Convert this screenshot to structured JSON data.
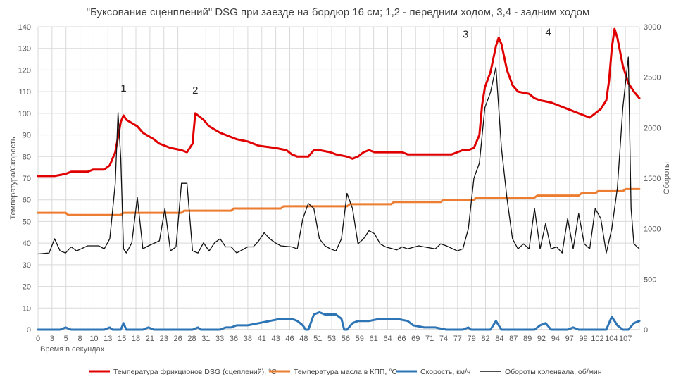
{
  "chart_data": {
    "type": "line",
    "title": "\"Буксование сценплений\" DSG при заезде на бордюр 16 см;  1,2 - передним ходом, 3,4 - задним ходом",
    "xlabel": "Время в секундах",
    "ylabel_left": "Температура/Скорость",
    "ylabel_right": "Обороты",
    "xlim": [
      0,
      109
    ],
    "ylim_left": [
      0,
      140
    ],
    "ylim_right": [
      0,
      3000
    ],
    "x_ticks": [
      "0",
      "3",
      "5",
      "8",
      "10",
      "13",
      "15",
      "18",
      "21",
      "23",
      "26",
      "28",
      "31",
      "33",
      "36",
      "38",
      "41",
      "43",
      "46",
      "48",
      "51",
      "53",
      "56",
      "59",
      "61",
      "64",
      "66",
      "69",
      "71",
      "74",
      "77",
      "79",
      "82",
      "84",
      "87",
      "89",
      "92",
      "94",
      "97",
      "99",
      "102",
      "104",
      "107"
    ],
    "x_tick_labels": [
      "0",
      "3",
      "5",
      "8",
      "10",
      "13",
      "15",
      "18",
      "21",
      "23",
      "26",
      "28",
      "31",
      "33",
      "36",
      "38",
      "41",
      "43",
      "46",
      "48",
      "51",
      "53",
      "56",
      "59",
      "61",
      "64",
      "66",
      "69",
      "71",
      "74",
      "77",
      "79",
      "82",
      "84",
      "87",
      "89",
      "92",
      "94",
      "97",
      "99",
      "102",
      "104",
      "107"
    ],
    "y_ticks_left": [
      "0",
      "10",
      "20",
      "30",
      "40",
      "50",
      "60",
      "70",
      "80",
      "90",
      "100",
      "110",
      "120",
      "130",
      "140"
    ],
    "y_ticks_right": [
      "0",
      "500",
      "1000",
      "1500",
      "2000",
      "2500",
      "3000"
    ],
    "annotations": [
      {
        "text": "1",
        "x": 15.5,
        "y": 110
      },
      {
        "text": "2",
        "x": 28.5,
        "y": 109
      },
      {
        "text": "3",
        "x": 77.5,
        "y": 135
      },
      {
        "text": "4",
        "x": 92.5,
        "y": 136
      }
    ],
    "grid": true,
    "legend_position": "bottom",
    "series": [
      {
        "name": "Температура фрикционов DSG (сцеплений), °С",
        "axis": "left",
        "color": "#e00000",
        "width": 3,
        "points": [
          [
            0,
            71
          ],
          [
            3,
            71
          ],
          [
            5,
            72
          ],
          [
            6,
            73
          ],
          [
            9,
            73
          ],
          [
            10,
            74
          ],
          [
            12,
            74
          ],
          [
            13,
            76
          ],
          [
            14,
            82
          ],
          [
            15,
            96
          ],
          [
            15.5,
            99
          ],
          [
            16,
            97
          ],
          [
            18,
            94
          ],
          [
            19,
            91
          ],
          [
            21,
            88
          ],
          [
            22,
            86
          ],
          [
            24,
            84
          ],
          [
            26,
            83
          ],
          [
            27,
            82
          ],
          [
            28,
            86
          ],
          [
            28.5,
            100
          ],
          [
            29,
            99
          ],
          [
            30,
            97
          ],
          [
            31,
            94
          ],
          [
            33,
            91
          ],
          [
            35,
            89
          ],
          [
            36,
            88
          ],
          [
            38,
            87
          ],
          [
            40,
            85
          ],
          [
            43,
            84
          ],
          [
            45,
            83
          ],
          [
            46,
            81
          ],
          [
            47,
            80
          ],
          [
            49,
            80
          ],
          [
            50,
            83
          ],
          [
            51,
            83
          ],
          [
            53,
            82
          ],
          [
            54,
            81
          ],
          [
            56,
            80
          ],
          [
            57,
            79
          ],
          [
            58,
            80
          ],
          [
            59,
            82
          ],
          [
            60,
            83
          ],
          [
            61,
            82
          ],
          [
            66,
            82
          ],
          [
            67,
            81
          ],
          [
            75,
            81
          ],
          [
            76,
            82
          ],
          [
            77,
            83
          ],
          [
            78,
            83
          ],
          [
            79,
            84
          ],
          [
            80,
            90
          ],
          [
            80.5,
            104
          ],
          [
            81,
            112
          ],
          [
            82,
            119
          ],
          [
            83,
            131
          ],
          [
            83.5,
            135
          ],
          [
            84,
            132
          ],
          [
            85,
            120
          ],
          [
            86,
            113
          ],
          [
            87,
            110
          ],
          [
            89,
            109
          ],
          [
            90,
            107
          ],
          [
            91,
            106
          ],
          [
            93,
            105
          ],
          [
            94,
            104
          ],
          [
            96,
            102
          ],
          [
            98,
            100
          ],
          [
            99,
            99
          ],
          [
            100,
            98
          ],
          [
            101,
            100
          ],
          [
            102,
            102
          ],
          [
            103,
            106
          ],
          [
            103.5,
            115
          ],
          [
            104,
            130
          ],
          [
            104.5,
            139
          ],
          [
            105,
            135
          ],
          [
            106,
            122
          ],
          [
            107,
            114
          ],
          [
            108,
            110
          ],
          [
            109,
            107
          ]
        ]
      },
      {
        "name": "Температура масла в КПП, °С",
        "axis": "left",
        "color": "#ed7d31",
        "width": 3,
        "points": [
          [
            0,
            54
          ],
          [
            5,
            54
          ],
          [
            5.5,
            53
          ],
          [
            15,
            53
          ],
          [
            15.5,
            54
          ],
          [
            26,
            54
          ],
          [
            26.5,
            55
          ],
          [
            35,
            55
          ],
          [
            35.5,
            56
          ],
          [
            44,
            56
          ],
          [
            44.5,
            57
          ],
          [
            56,
            57
          ],
          [
            56.5,
            58
          ],
          [
            64,
            58
          ],
          [
            64.5,
            59
          ],
          [
            73,
            59
          ],
          [
            73.5,
            60
          ],
          [
            79,
            60
          ],
          [
            79.5,
            61
          ],
          [
            90,
            61
          ],
          [
            90.5,
            62
          ],
          [
            98,
            62
          ],
          [
            98.5,
            63
          ],
          [
            101,
            63
          ],
          [
            101.5,
            64
          ],
          [
            106,
            64
          ],
          [
            106.5,
            65
          ],
          [
            109,
            65
          ]
        ]
      },
      {
        "name": "Скорость, км/ч",
        "axis": "left",
        "color": "#2e75b6",
        "width": 3,
        "points": [
          [
            0,
            0
          ],
          [
            4,
            0
          ],
          [
            5,
            1
          ],
          [
            6,
            0
          ],
          [
            12,
            0
          ],
          [
            13,
            1
          ],
          [
            13.5,
            0
          ],
          [
            15,
            0
          ],
          [
            15.5,
            3
          ],
          [
            16,
            0
          ],
          [
            19,
            0
          ],
          [
            20,
            1
          ],
          [
            21,
            0
          ],
          [
            28,
            0
          ],
          [
            29,
            1
          ],
          [
            29.5,
            0
          ],
          [
            33,
            0
          ],
          [
            34,
            1
          ],
          [
            35,
            1
          ],
          [
            36,
            2
          ],
          [
            38,
            2
          ],
          [
            40,
            3
          ],
          [
            42,
            4
          ],
          [
            44,
            5
          ],
          [
            46,
            5
          ],
          [
            47,
            4
          ],
          [
            48,
            2
          ],
          [
            48.5,
            0
          ],
          [
            49,
            0
          ],
          [
            50,
            7
          ],
          [
            51,
            8
          ],
          [
            52,
            7
          ],
          [
            54,
            7
          ],
          [
            55,
            5
          ],
          [
            55.5,
            0
          ],
          [
            56,
            0
          ],
          [
            57,
            3
          ],
          [
            58,
            4
          ],
          [
            60,
            4
          ],
          [
            62,
            5
          ],
          [
            65,
            5
          ],
          [
            67,
            4
          ],
          [
            68,
            2
          ],
          [
            70,
            1
          ],
          [
            72,
            1
          ],
          [
            74,
            0
          ],
          [
            77,
            0
          ],
          [
            78,
            1
          ],
          [
            78.5,
            0
          ],
          [
            82,
            0
          ],
          [
            83,
            4
          ],
          [
            84,
            0
          ],
          [
            90,
            0
          ],
          [
            91,
            2
          ],
          [
            92,
            3
          ],
          [
            93,
            0
          ],
          [
            96,
            0
          ],
          [
            97,
            1
          ],
          [
            98,
            0
          ],
          [
            103,
            0
          ],
          [
            104,
            6
          ],
          [
            105,
            2
          ],
          [
            106,
            0
          ],
          [
            107,
            0
          ],
          [
            108,
            3
          ],
          [
            109,
            4
          ]
        ]
      },
      {
        "name": "Обороты коленвала, об/мин",
        "axis": "right",
        "color": "#111111",
        "width": 1.3,
        "points": [
          [
            0,
            750
          ],
          [
            2,
            760
          ],
          [
            3,
            900
          ],
          [
            4,
            780
          ],
          [
            5,
            760
          ],
          [
            6,
            820
          ],
          [
            7,
            780
          ],
          [
            9,
            830
          ],
          [
            11,
            830
          ],
          [
            12,
            800
          ],
          [
            13,
            900
          ],
          [
            14,
            1450
          ],
          [
            14.5,
            2150
          ],
          [
            15,
            1700
          ],
          [
            15.5,
            800
          ],
          [
            16,
            760
          ],
          [
            17,
            860
          ],
          [
            18,
            1310
          ],
          [
            19,
            800
          ],
          [
            20,
            830
          ],
          [
            22,
            880
          ],
          [
            23,
            1200
          ],
          [
            24,
            780
          ],
          [
            25,
            820
          ],
          [
            26,
            1450
          ],
          [
            27,
            1450
          ],
          [
            28,
            780
          ],
          [
            29,
            760
          ],
          [
            30,
            860
          ],
          [
            31,
            780
          ],
          [
            32,
            860
          ],
          [
            33,
            900
          ],
          [
            34,
            820
          ],
          [
            35,
            820
          ],
          [
            36,
            760
          ],
          [
            38,
            820
          ],
          [
            39,
            820
          ],
          [
            40,
            880
          ],
          [
            41,
            960
          ],
          [
            42,
            900
          ],
          [
            43,
            860
          ],
          [
            44,
            830
          ],
          [
            46,
            820
          ],
          [
            47,
            800
          ],
          [
            48,
            1100
          ],
          [
            49,
            1250
          ],
          [
            50,
            1200
          ],
          [
            51,
            900
          ],
          [
            52,
            830
          ],
          [
            53,
            800
          ],
          [
            54,
            780
          ],
          [
            55,
            900
          ],
          [
            56,
            1350
          ],
          [
            57,
            1200
          ],
          [
            58,
            850
          ],
          [
            59,
            900
          ],
          [
            60,
            980
          ],
          [
            61,
            950
          ],
          [
            62,
            850
          ],
          [
            63,
            820
          ],
          [
            65,
            790
          ],
          [
            66,
            820
          ],
          [
            67,
            800
          ],
          [
            69,
            830
          ],
          [
            70,
            820
          ],
          [
            72,
            800
          ],
          [
            73,
            850
          ],
          [
            74,
            830
          ],
          [
            76,
            780
          ],
          [
            77,
            800
          ],
          [
            78,
            1000
          ],
          [
            79,
            1500
          ],
          [
            80,
            1650
          ],
          [
            81,
            2200
          ],
          [
            82,
            2350
          ],
          [
            83,
            2600
          ],
          [
            84,
            1800
          ],
          [
            85,
            1300
          ],
          [
            86,
            900
          ],
          [
            87,
            800
          ],
          [
            88,
            850
          ],
          [
            89,
            800
          ],
          [
            90,
            1200
          ],
          [
            91,
            800
          ],
          [
            92,
            1050
          ],
          [
            93,
            800
          ],
          [
            94,
            820
          ],
          [
            95,
            760
          ],
          [
            96,
            1100
          ],
          [
            97,
            800
          ],
          [
            98,
            1150
          ],
          [
            99,
            850
          ],
          [
            100,
            800
          ],
          [
            101,
            1200
          ],
          [
            102,
            1100
          ],
          [
            103,
            760
          ],
          [
            104,
            1000
          ],
          [
            105,
            1400
          ],
          [
            106,
            2200
          ],
          [
            107,
            2700
          ],
          [
            107.5,
            1200
          ],
          [
            108,
            850
          ],
          [
            109,
            800
          ]
        ]
      }
    ]
  },
  "legend": {
    "items": [
      {
        "label": "Температура фрикционов DSG (сцеплений), °С",
        "color": "#e00000"
      },
      {
        "label": "Температура масла в КПП, °С",
        "color": "#ed7d31"
      },
      {
        "label": "Скорость, км/ч",
        "color": "#2e75b6"
      },
      {
        "label": "Обороты коленвала, об/мин",
        "color": "#111111"
      }
    ]
  }
}
